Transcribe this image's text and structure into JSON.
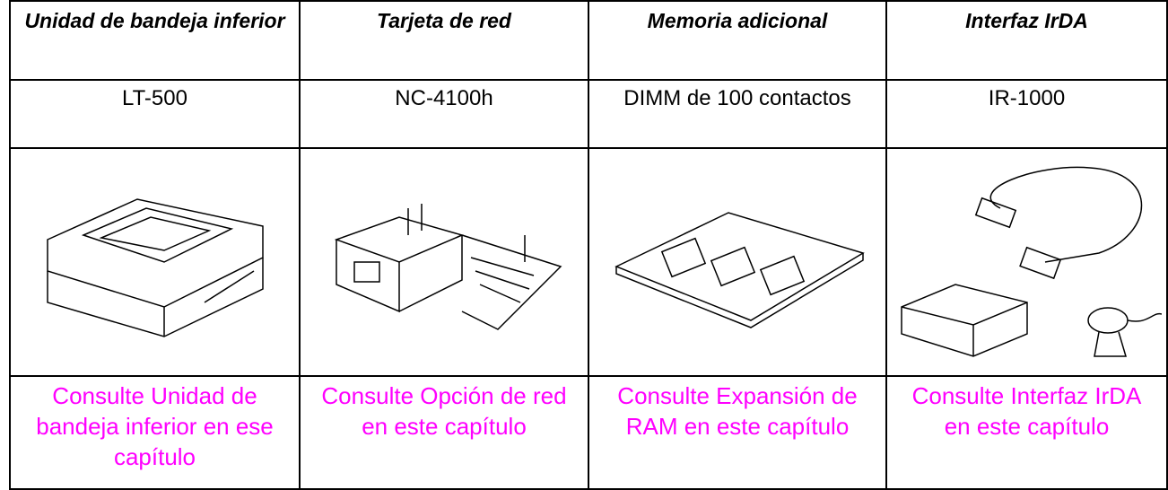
{
  "table": {
    "columns": [
      {
        "header": "Unidad de bandeja inferior",
        "model": "LT-500",
        "link": "Consulte Unidad de bandeja inferior en ese capítulo"
      },
      {
        "header": "Tarjeta de red",
        "model": "NC-4100h",
        "link": "Consulte Opción de red en este capítulo"
      },
      {
        "header": "Memoria adicional",
        "model": "DIMM de 100 contactos",
        "link": "Consulte Expansión de RAM en este capítulo"
      },
      {
        "header": "Interfaz IrDA",
        "model": "IR-1000",
        "link": "Consulte Interfaz IrDA en este capítulo"
      }
    ]
  }
}
